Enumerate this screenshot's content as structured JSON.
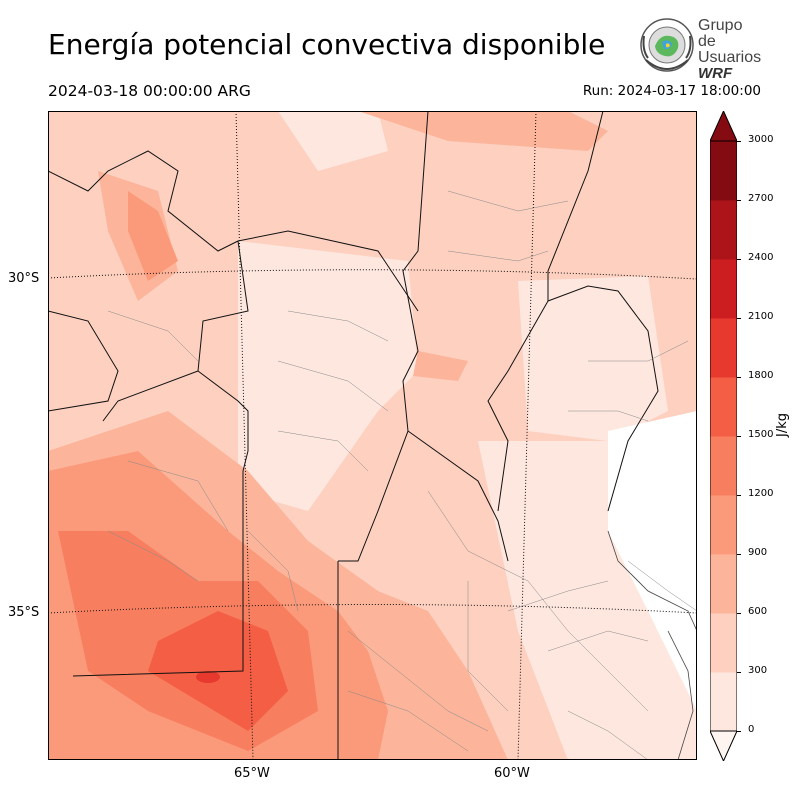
{
  "header": {
    "title": "Energía potencial convectiva disponible",
    "valid_time": "2024-03-18 00:00:00 ARG",
    "run_time": "Run: 2024-03-17 18:00:00"
  },
  "logo": {
    "line1": "Grupo de",
    "line2": "Usuarios",
    "line3": "WRF"
  },
  "map": {
    "lat_labels": [
      "30°S",
      "35°S"
    ],
    "lon_labels": [
      "65°W",
      "60°W"
    ]
  },
  "colorbar": {
    "unit": "J/kg",
    "ticks": [
      "0",
      "300",
      "600",
      "900",
      "1200",
      "1500",
      "1800",
      "2100",
      "2400",
      "2700",
      "3000"
    ],
    "colors": [
      "#fee7df",
      "#fdd0c0",
      "#fcb59b",
      "#fb9a7a",
      "#f77f5f",
      "#f45e45",
      "#e7392e",
      "#cc1d21",
      "#ad1419",
      "#850b12"
    ],
    "extend": "both"
  }
}
